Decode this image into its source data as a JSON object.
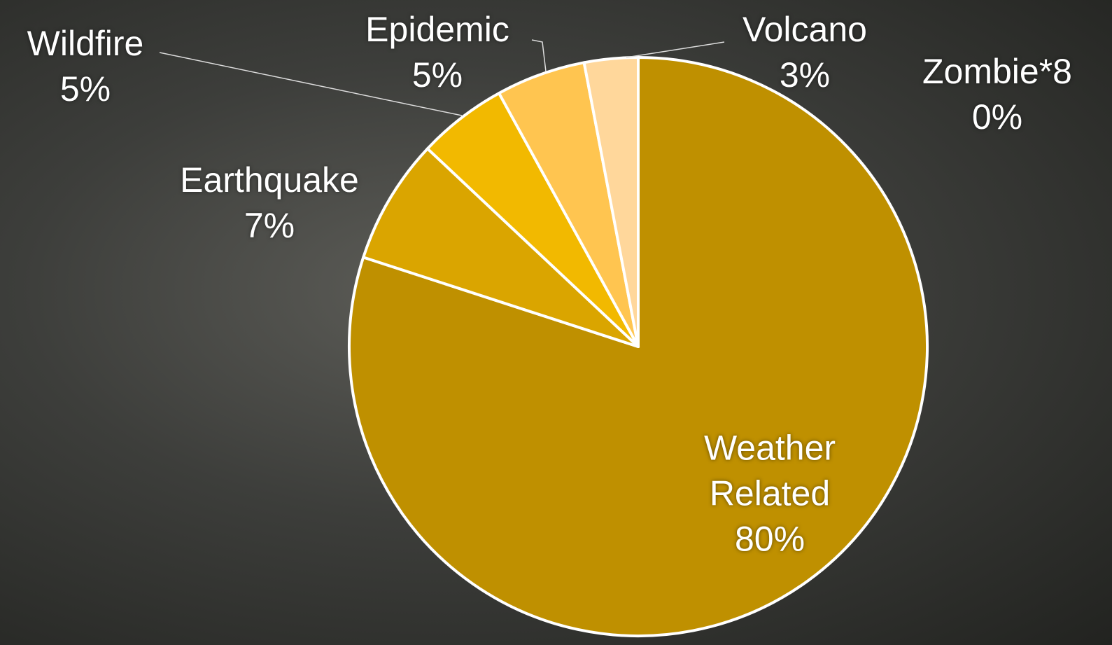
{
  "chart_data": {
    "type": "pie",
    "categories": [
      "Weather Related",
      "Earthquake",
      "Wildfire",
      "Epidemic",
      "Volcano",
      "Zombie*8"
    ],
    "values": [
      80,
      7,
      5,
      5,
      3,
      0
    ],
    "value_labels": [
      "80%",
      "7%",
      "5%",
      "5%",
      "3%",
      "0%"
    ],
    "colors": [
      "#bf9000",
      "#daa500",
      "#f2b900",
      "#ffc550",
      "#ffd79b",
      "#ffe6c4"
    ]
  }
}
